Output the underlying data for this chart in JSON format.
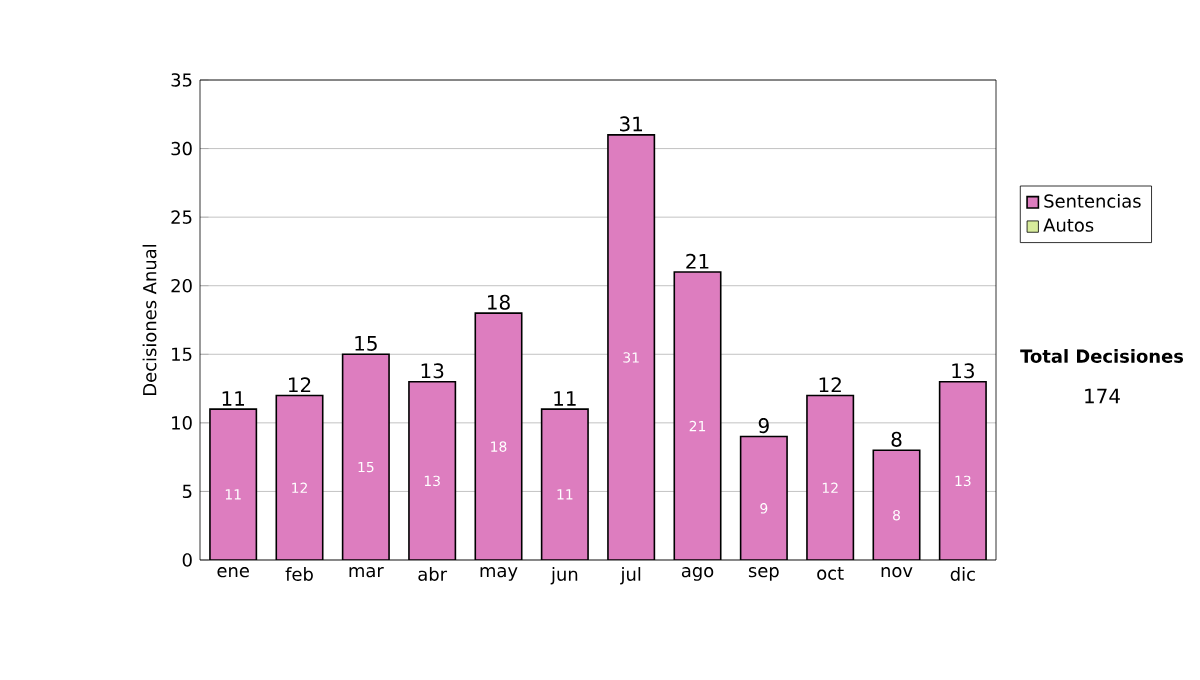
{
  "chart_data": {
    "type": "bar",
    "stacked": true,
    "ylabel": "Decisiones Anual",
    "categories": [
      "ene",
      "feb",
      "mar",
      "abr",
      "may",
      "jun",
      "jul",
      "ago",
      "sep",
      "oct",
      "nov",
      "dic"
    ],
    "series": [
      {
        "name": "Sentencias",
        "color": "#dd7dbf",
        "values": [
          11,
          12,
          15,
          13,
          18,
          11,
          31,
          21,
          9,
          12,
          8,
          13
        ]
      },
      {
        "name": "Autos",
        "color": "#d8ec9c",
        "values": [
          null,
          null,
          null,
          null,
          null,
          null,
          null,
          null,
          null,
          null,
          null,
          null
        ]
      }
    ],
    "ylim": [
      0,
      35
    ],
    "yticks": [
      0,
      5,
      10,
      15,
      20,
      25,
      30,
      35
    ],
    "grid": "y",
    "legend": "right",
    "data_labels": true,
    "totals": [
      "11",
      "12",
      "15",
      "13",
      "18",
      "11",
      "31",
      "21",
      "9",
      "12",
      "8",
      "13"
    ],
    "annotations": [
      "Total Decisiones",
      "174"
    ]
  }
}
